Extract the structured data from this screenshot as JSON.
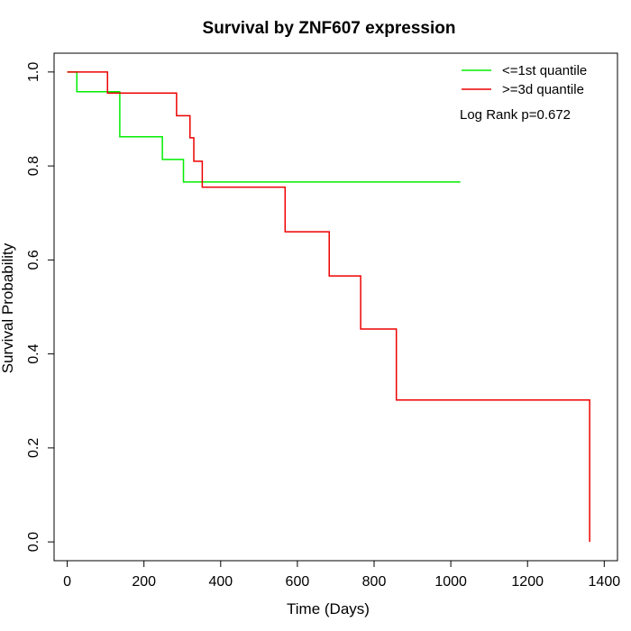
{
  "chart_data": {
    "type": "line",
    "title": "Survival by ZNF607 expression",
    "xlabel": "Time (Days)",
    "ylabel": "Survival Probability",
    "xlim": [
      0,
      1400
    ],
    "ylim": [
      0,
      1
    ],
    "xticks": [
      0,
      200,
      400,
      600,
      800,
      1000,
      1200,
      1400
    ],
    "yticks": [
      0.0,
      0.2,
      0.4,
      0.6,
      0.8,
      1.0
    ],
    "xtick_labels": [
      "0",
      "200",
      "400",
      "600",
      "800",
      "1000",
      "1200",
      "1400"
    ],
    "ytick_labels": [
      "0.0",
      "0.2",
      "0.4",
      "0.6",
      "0.8",
      "1.0"
    ],
    "grid": false,
    "legend_position": "top-right",
    "annotation": "Log Rank p=0.672",
    "series": [
      {
        "name": "<=1st quantile",
        "color": "#00ee00",
        "step": "post",
        "x": [
          0,
          25,
          132,
          137,
          248,
          303,
          1025
        ],
        "y": [
          1.0,
          0.958,
          0.958,
          0.862,
          0.814,
          0.766,
          0.766
        ]
      },
      {
        "name": ">=3d quantile",
        "color": "#ee0000",
        "step": "post",
        "x": [
          0,
          105,
          285,
          320,
          330,
          352,
          568,
          683,
          765,
          858,
          1362,
          1362
        ],
        "y": [
          1.0,
          0.955,
          0.907,
          0.86,
          0.81,
          0.755,
          0.66,
          0.566,
          0.453,
          0.302,
          0.302,
          0.0
        ]
      }
    ]
  }
}
